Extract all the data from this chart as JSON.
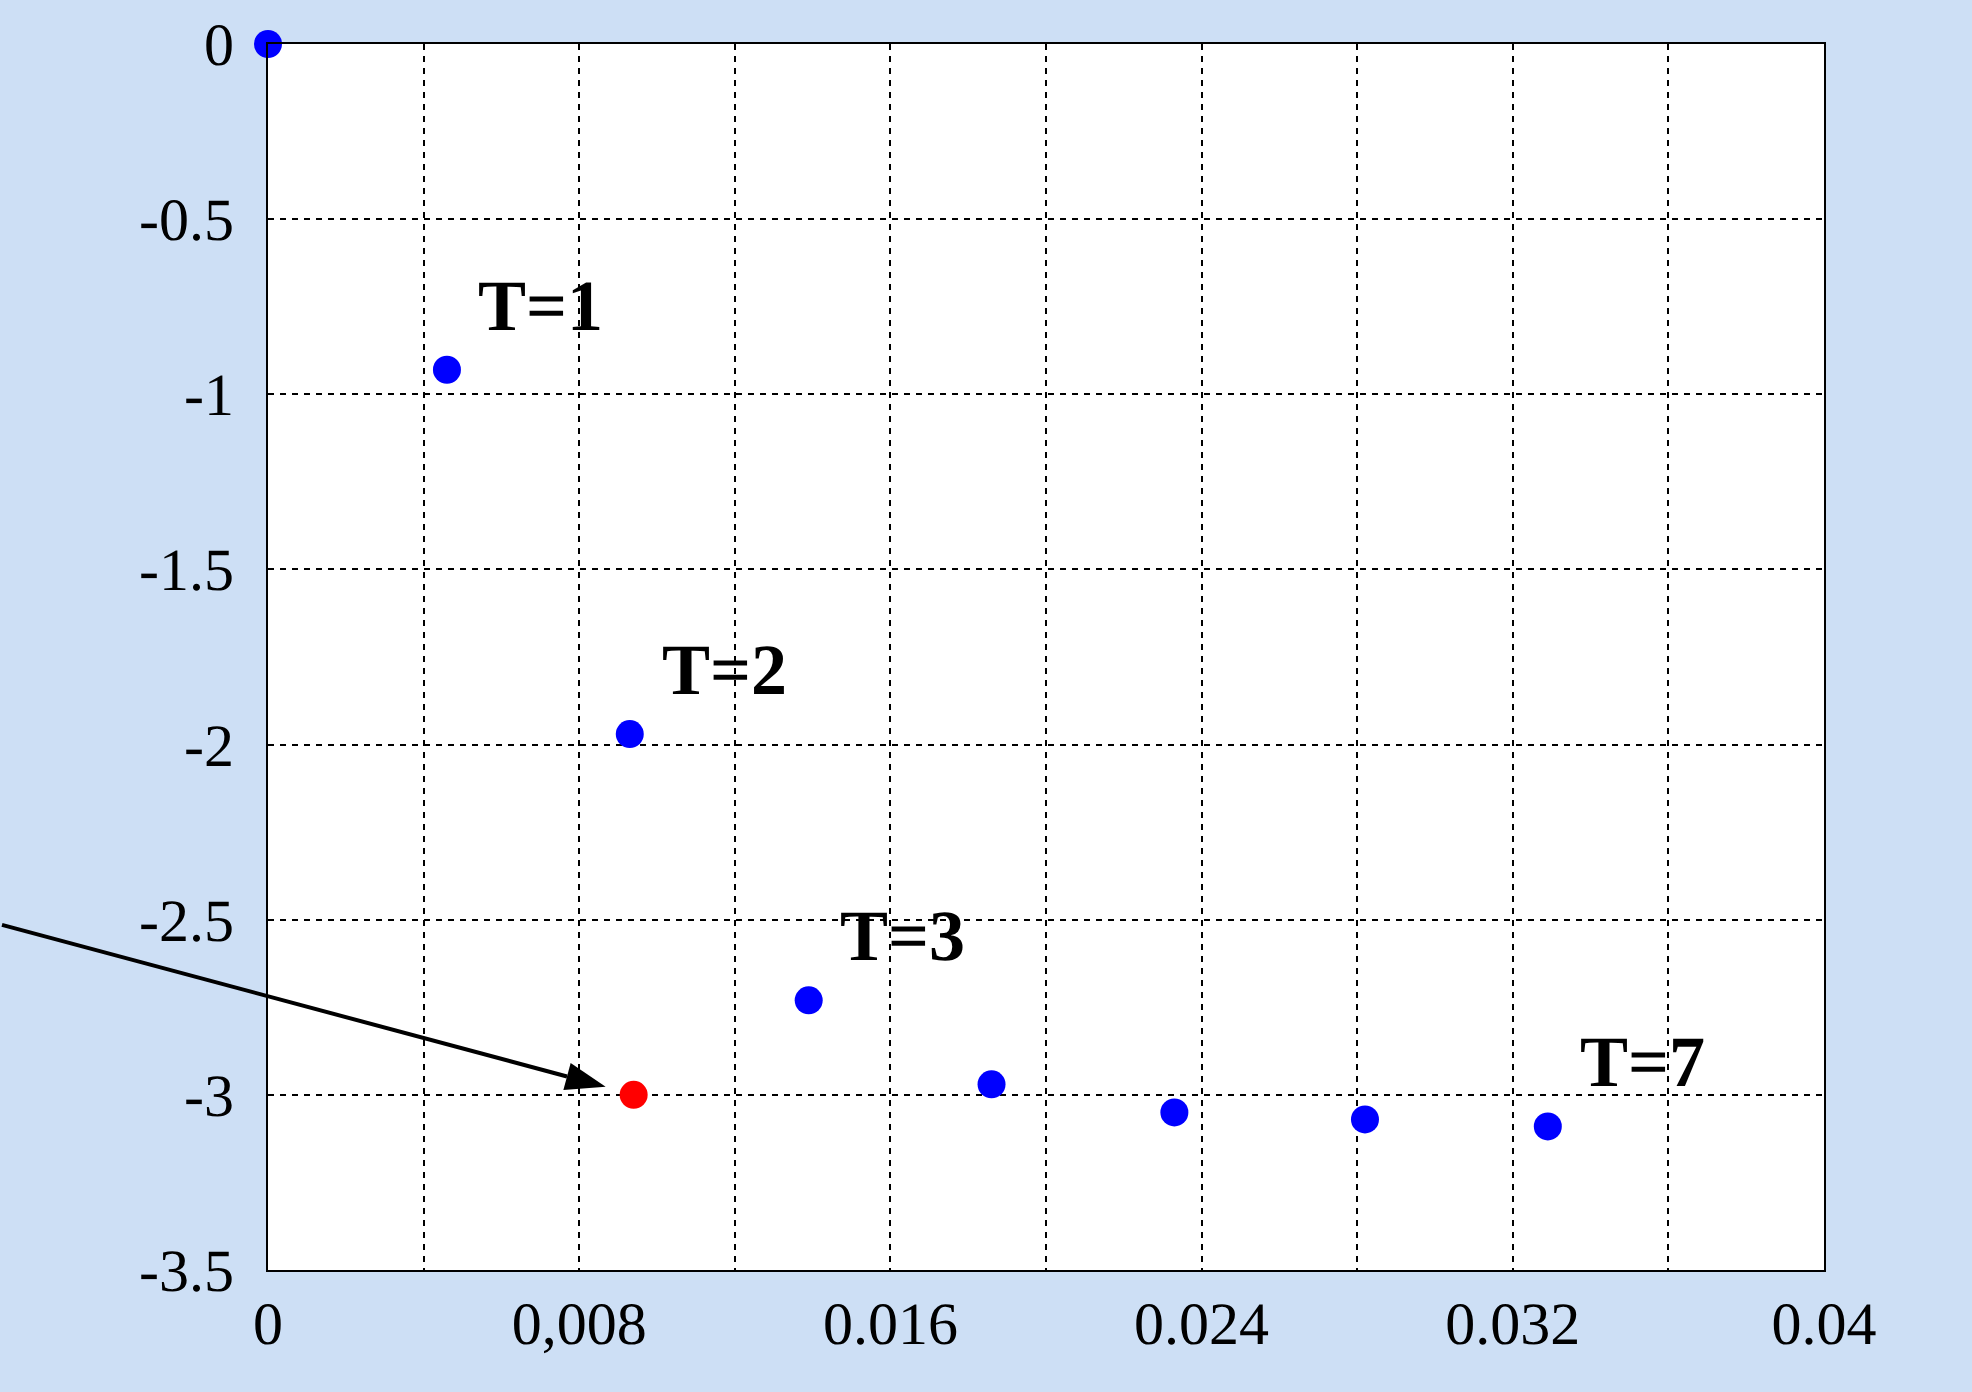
{
  "chart_data": {
    "type": "scatter",
    "x": [
      0,
      0.0046,
      0.0093,
      0.0094,
      0.0139,
      0.0186,
      0.0233,
      0.0282,
      0.0329
    ],
    "values": [
      0,
      -0.93,
      -1.97,
      -3.0,
      -2.73,
      -2.97,
      -3.05,
      -3.07,
      -3.09
    ],
    "colors": [
      "#0000ff",
      "#0000ff",
      "#0000ff",
      "#ff0000",
      "#0000ff",
      "#0000ff",
      "#0000ff",
      "#0000ff",
      "#0000ff"
    ],
    "marker": "circle",
    "grid": true,
    "xlim": [
      0,
      0.04
    ],
    "xticks": [
      0,
      {
        "value": 0.004,
        "label": null
      },
      {
        "value": 0.008,
        "label": "0,008"
      },
      {
        "value": 0.012,
        "label": null
      },
      0.016,
      {
        "value": 0.02,
        "label": null
      },
      0.024,
      {
        "value": 0.028,
        "label": null
      },
      0.032,
      {
        "value": 0.036,
        "label": null
      },
      0.04
    ],
    "ylim": [
      -3.5,
      0
    ],
    "yticks": [
      0,
      -0.5,
      -1,
      -1.5,
      -2,
      -2.5,
      -3,
      -3.5
    ],
    "annotations": [
      {
        "text": "T=1",
        "x": 0.0046,
        "y": -0.93
      },
      {
        "text": "T=2",
        "x": 0.0093,
        "y": -1.97
      },
      {
        "text": "T=3",
        "x": 0.0139,
        "y": -2.73
      },
      {
        "text": "T=7",
        "x": 0.0329,
        "y": -3.09
      }
    ]
  }
}
